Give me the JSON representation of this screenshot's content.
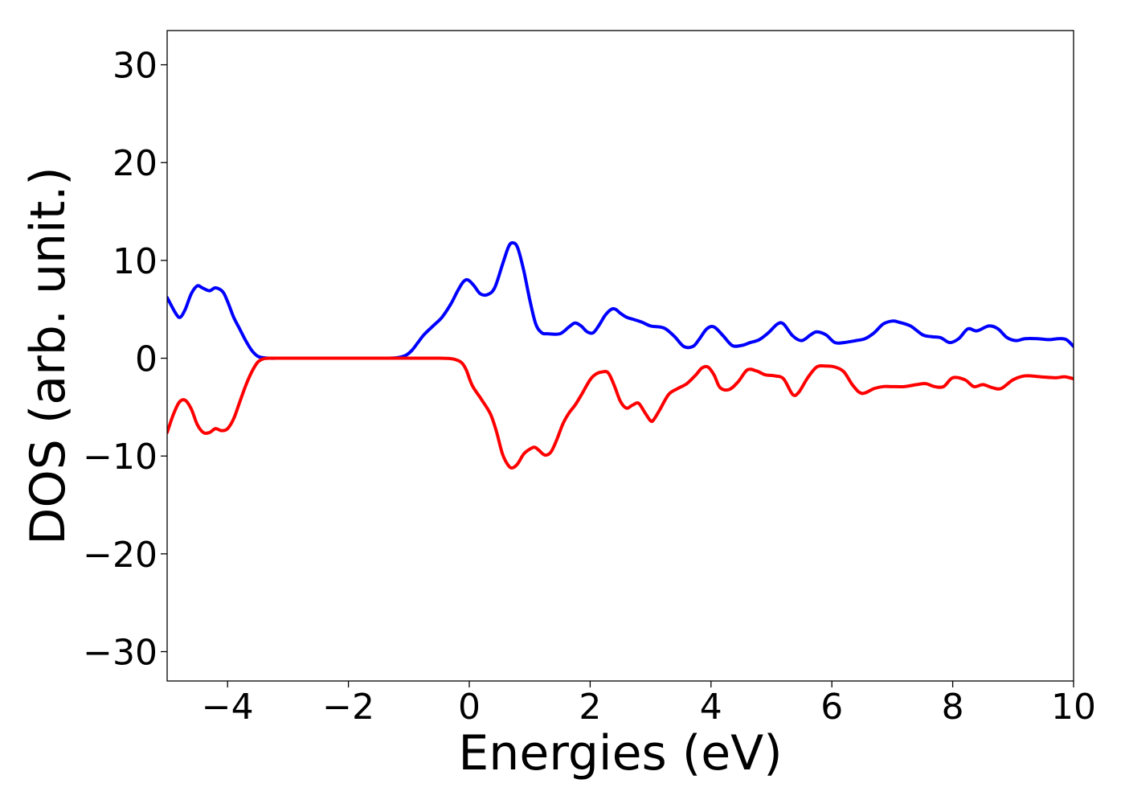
{
  "chart_data": {
    "type": "line",
    "title": "",
    "xlabel": "Energies (eV)",
    "ylabel": "DOS (arb. unit.)",
    "xlim": [
      -5,
      10
    ],
    "ylim": [
      -33,
      33.5
    ],
    "x_ticks": [
      -4,
      -2,
      0,
      2,
      4,
      6,
      8,
      10
    ],
    "x_tick_labels": [
      "−4",
      "−2",
      "0",
      "2",
      "4",
      "6",
      "8",
      "10"
    ],
    "y_ticks": [
      -30,
      -20,
      -10,
      0,
      10,
      20,
      30
    ],
    "y_tick_labels": [
      "−30",
      "−20",
      "−10",
      "0",
      "10",
      "20",
      "30"
    ],
    "grid": false,
    "legend": "none",
    "series": [
      {
        "color": "#0000ff",
        "x": [
          -5.0,
          -4.85,
          -4.78,
          -4.7,
          -4.6,
          -4.5,
          -4.42,
          -4.3,
          -4.2,
          -4.08,
          -4.0,
          -3.9,
          -3.8,
          -3.7,
          -3.6,
          -3.5,
          -3.4,
          -3.3,
          -3.2,
          -3.0,
          -2.5,
          -2.0,
          -1.5,
          -1.2,
          -1.05,
          -0.95,
          -0.85,
          -0.75,
          -0.6,
          -0.45,
          -0.3,
          -0.2,
          -0.1,
          -0.02,
          0.08,
          0.18,
          0.3,
          0.42,
          0.55,
          0.65,
          0.72,
          0.8,
          0.9,
          1.0,
          1.1,
          1.2,
          1.3,
          1.5,
          1.65,
          1.75,
          1.85,
          1.95,
          2.05,
          2.15,
          2.25,
          2.35,
          2.42,
          2.5,
          2.6,
          2.7,
          2.85,
          3.0,
          3.15,
          3.25,
          3.4,
          3.55,
          3.7,
          3.8,
          3.93,
          4.05,
          4.2,
          4.35,
          4.5,
          4.65,
          4.8,
          4.95,
          5.1,
          5.2,
          5.35,
          5.5,
          5.65,
          5.75,
          5.9,
          6.05,
          6.2,
          6.4,
          6.55,
          6.7,
          6.85,
          7.0,
          7.1,
          7.3,
          7.5,
          7.65,
          7.8,
          7.95,
          8.1,
          8.25,
          8.4,
          8.6,
          8.75,
          8.9,
          9.05,
          9.2,
          9.4,
          9.6,
          9.75,
          9.88,
          10.0
        ],
        "y": [
          6.2,
          4.5,
          4.2,
          5.0,
          6.6,
          7.4,
          7.2,
          6.9,
          7.2,
          6.8,
          5.8,
          4.2,
          3.0,
          1.8,
          0.8,
          0.2,
          0.05,
          0.0,
          0.0,
          0.0,
          0.0,
          0.0,
          0.0,
          0.05,
          0.3,
          0.8,
          1.6,
          2.4,
          3.3,
          4.2,
          5.6,
          6.8,
          7.8,
          8.0,
          7.4,
          6.6,
          6.5,
          7.2,
          9.6,
          11.4,
          11.8,
          11.3,
          9.0,
          6.0,
          3.5,
          2.6,
          2.5,
          2.5,
          3.2,
          3.6,
          3.3,
          2.7,
          2.6,
          3.4,
          4.4,
          5.0,
          5.0,
          4.6,
          4.2,
          4.0,
          3.7,
          3.3,
          3.2,
          3.0,
          2.2,
          1.2,
          1.2,
          1.9,
          3.0,
          3.2,
          2.3,
          1.3,
          1.3,
          1.6,
          1.9,
          2.6,
          3.5,
          3.5,
          2.3,
          1.8,
          2.4,
          2.7,
          2.4,
          1.6,
          1.6,
          1.8,
          2.0,
          2.6,
          3.5,
          3.8,
          3.7,
          3.3,
          2.4,
          2.2,
          2.1,
          1.6,
          2.0,
          3.0,
          2.8,
          3.3,
          3.0,
          2.1,
          1.8,
          2.0,
          2.0,
          1.9,
          2.0,
          1.9,
          1.2
        ]
      },
      {
        "color": "#ff0000",
        "x": [
          -5.0,
          -4.9,
          -4.8,
          -4.7,
          -4.6,
          -4.5,
          -4.4,
          -4.3,
          -4.2,
          -4.1,
          -4.0,
          -3.9,
          -3.8,
          -3.7,
          -3.6,
          -3.5,
          -3.4,
          -3.3,
          -3.2,
          -3.0,
          -2.5,
          -2.0,
          -1.5,
          -1.0,
          -0.5,
          -0.3,
          -0.2,
          -0.12,
          -0.05,
          0.05,
          0.2,
          0.35,
          0.45,
          0.55,
          0.65,
          0.72,
          0.8,
          0.9,
          1.0,
          1.08,
          1.15,
          1.25,
          1.35,
          1.45,
          1.55,
          1.65,
          1.75,
          1.85,
          2.0,
          2.1,
          2.2,
          2.3,
          2.4,
          2.5,
          2.6,
          2.7,
          2.8,
          2.9,
          3.0,
          3.05,
          3.15,
          3.3,
          3.45,
          3.6,
          3.75,
          3.85,
          3.95,
          4.05,
          4.15,
          4.3,
          4.45,
          4.6,
          4.75,
          4.9,
          5.05,
          5.2,
          5.35,
          5.45,
          5.6,
          5.75,
          5.9,
          6.05,
          6.2,
          6.35,
          6.5,
          6.7,
          6.85,
          7.0,
          7.2,
          7.4,
          7.55,
          7.7,
          7.85,
          8.0,
          8.2,
          8.35,
          8.5,
          8.65,
          8.8,
          9.0,
          9.2,
          9.45,
          9.7,
          9.85,
          10.0
        ],
        "y": [
          -7.6,
          -5.8,
          -4.5,
          -4.3,
          -5.2,
          -6.8,
          -7.6,
          -7.6,
          -7.2,
          -7.4,
          -7.2,
          -6.2,
          -4.5,
          -2.8,
          -1.4,
          -0.4,
          -0.05,
          0.0,
          0.0,
          0.0,
          0.0,
          0.0,
          0.0,
          0.0,
          0.0,
          -0.05,
          -0.2,
          -0.5,
          -1.2,
          -2.8,
          -4.2,
          -5.7,
          -7.5,
          -9.8,
          -11.0,
          -11.2,
          -10.8,
          -9.8,
          -9.3,
          -9.1,
          -9.4,
          -9.9,
          -9.6,
          -8.3,
          -6.7,
          -5.6,
          -4.8,
          -3.8,
          -2.2,
          -1.6,
          -1.4,
          -1.5,
          -2.8,
          -4.4,
          -5.1,
          -4.8,
          -4.6,
          -5.5,
          -6.4,
          -6.3,
          -5.3,
          -3.7,
          -3.1,
          -2.6,
          -1.7,
          -1.0,
          -0.9,
          -1.7,
          -3.0,
          -3.2,
          -2.4,
          -1.2,
          -1.3,
          -1.7,
          -1.8,
          -2.1,
          -3.7,
          -3.5,
          -2.0,
          -0.9,
          -0.8,
          -0.9,
          -1.4,
          -2.8,
          -3.6,
          -3.1,
          -2.9,
          -2.9,
          -2.9,
          -2.7,
          -2.6,
          -2.9,
          -2.9,
          -2.0,
          -2.2,
          -2.9,
          -2.7,
          -3.0,
          -3.1,
          -2.2,
          -1.8,
          -1.9,
          -2.0,
          -1.9,
          -2.1
        ]
      }
    ]
  }
}
